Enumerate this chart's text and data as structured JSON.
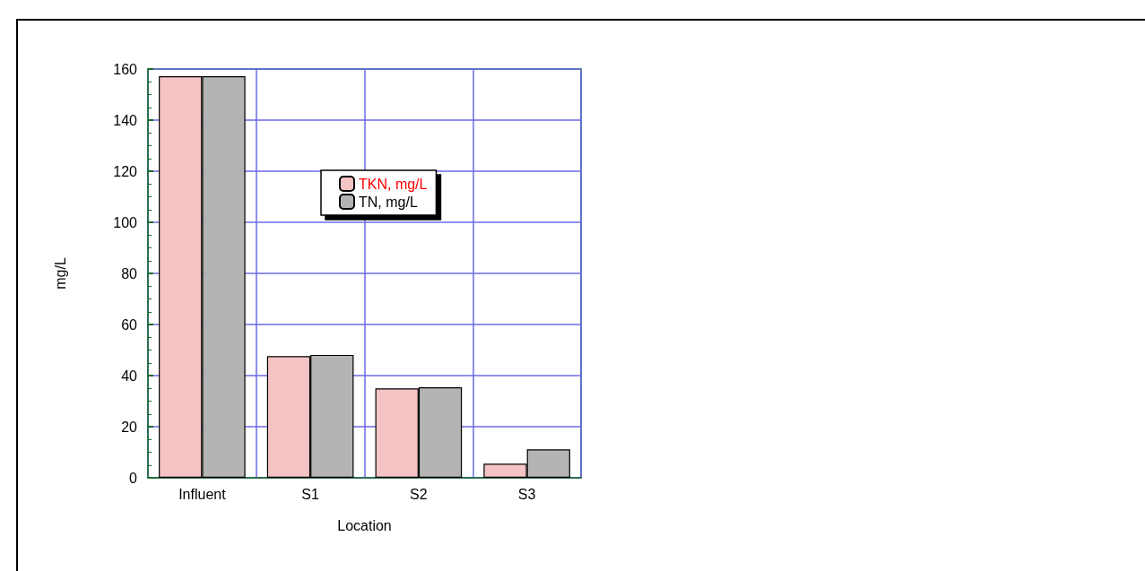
{
  "chart_data": {
    "type": "bar",
    "xlabel": "Location",
    "ylabel": "mg/L",
    "categories": [
      "Influent",
      "S1",
      "S2",
      "S3"
    ],
    "series": [
      {
        "name": "TKN, mg/L",
        "color": "#f4c4c4",
        "values": [
          157.2,
          47.6,
          35.0,
          5.5
        ]
      },
      {
        "name": "TN, mg/L",
        "color": "#b4b4b4",
        "values": [
          157.2,
          48.1,
          35.4,
          11.1
        ]
      }
    ],
    "ylim": [
      0,
      160
    ],
    "yticks": [
      0,
      20,
      40,
      60,
      80,
      100,
      120,
      140,
      160
    ],
    "grid": true,
    "legend": "center"
  }
}
